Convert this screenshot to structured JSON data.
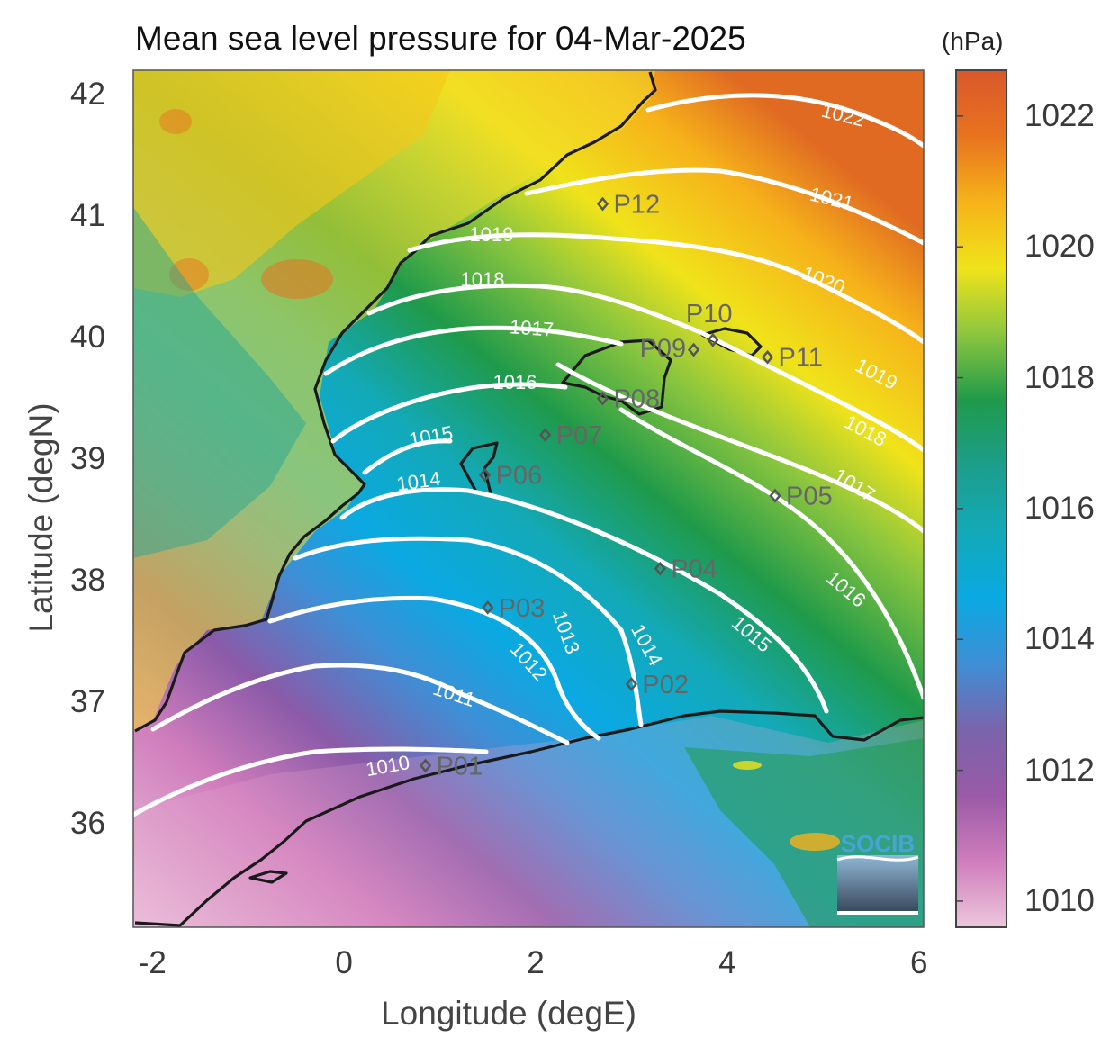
{
  "title": "Mean sea level pressure for 04-Mar-2025",
  "colorbar": {
    "units": "(hPa)",
    "ticks": [
      "1010",
      "1012",
      "1014",
      "1016",
      "1018",
      "1020",
      "1022"
    ],
    "range": [
      1009.6,
      1022.7
    ],
    "colormap": [
      "#ecc6dc",
      "#d07dbc",
      "#9a5aa6",
      "#7a64ac",
      "#3e8fd6",
      "#0aa9e2",
      "#13a9b8",
      "#1c9e8c",
      "#1f9a4a",
      "#8cc63e",
      "#f0e31a",
      "#f6b21a",
      "#e8731f",
      "#d9572a"
    ]
  },
  "xaxis": {
    "label": "Longitude (degE)",
    "ticks": [
      "-2",
      "0",
      "2",
      "4",
      "6"
    ],
    "range": [
      -2.2,
      6.05
    ]
  },
  "yaxis": {
    "label": "Latitude (degN)",
    "ticks": [
      "36",
      "37",
      "38",
      "39",
      "40",
      "41",
      "42"
    ],
    "range": [
      35.15,
      42.2
    ]
  },
  "contour_labels": [
    "1022",
    "1021",
    "1020",
    "1019",
    "1018",
    "1017",
    "1016",
    "1015",
    "1014",
    "1013",
    "1012",
    "1011",
    "1010"
  ],
  "stations": [
    {
      "name": "P01",
      "lon": 0.85,
      "lat": 36.48
    },
    {
      "name": "P02",
      "lon": 3.0,
      "lat": 37.15
    },
    {
      "name": "P03",
      "lon": 1.5,
      "lat": 37.78
    },
    {
      "name": "P04",
      "lon": 3.3,
      "lat": 38.1
    },
    {
      "name": "P05",
      "lon": 4.5,
      "lat": 38.7
    },
    {
      "name": "P06",
      "lon": 1.47,
      "lat": 38.87
    },
    {
      "name": "P07",
      "lon": 2.1,
      "lat": 39.2
    },
    {
      "name": "P08",
      "lon": 2.7,
      "lat": 39.5
    },
    {
      "name": "P09",
      "lon": 3.65,
      "lat": 39.9
    },
    {
      "name": "P10",
      "lon": 3.85,
      "lat": 39.98
    },
    {
      "name": "P11",
      "lon": 4.42,
      "lat": 39.84
    },
    {
      "name": "P12",
      "lon": 2.7,
      "lat": 41.1
    }
  ],
  "logo": {
    "text": "SOCIB"
  }
}
